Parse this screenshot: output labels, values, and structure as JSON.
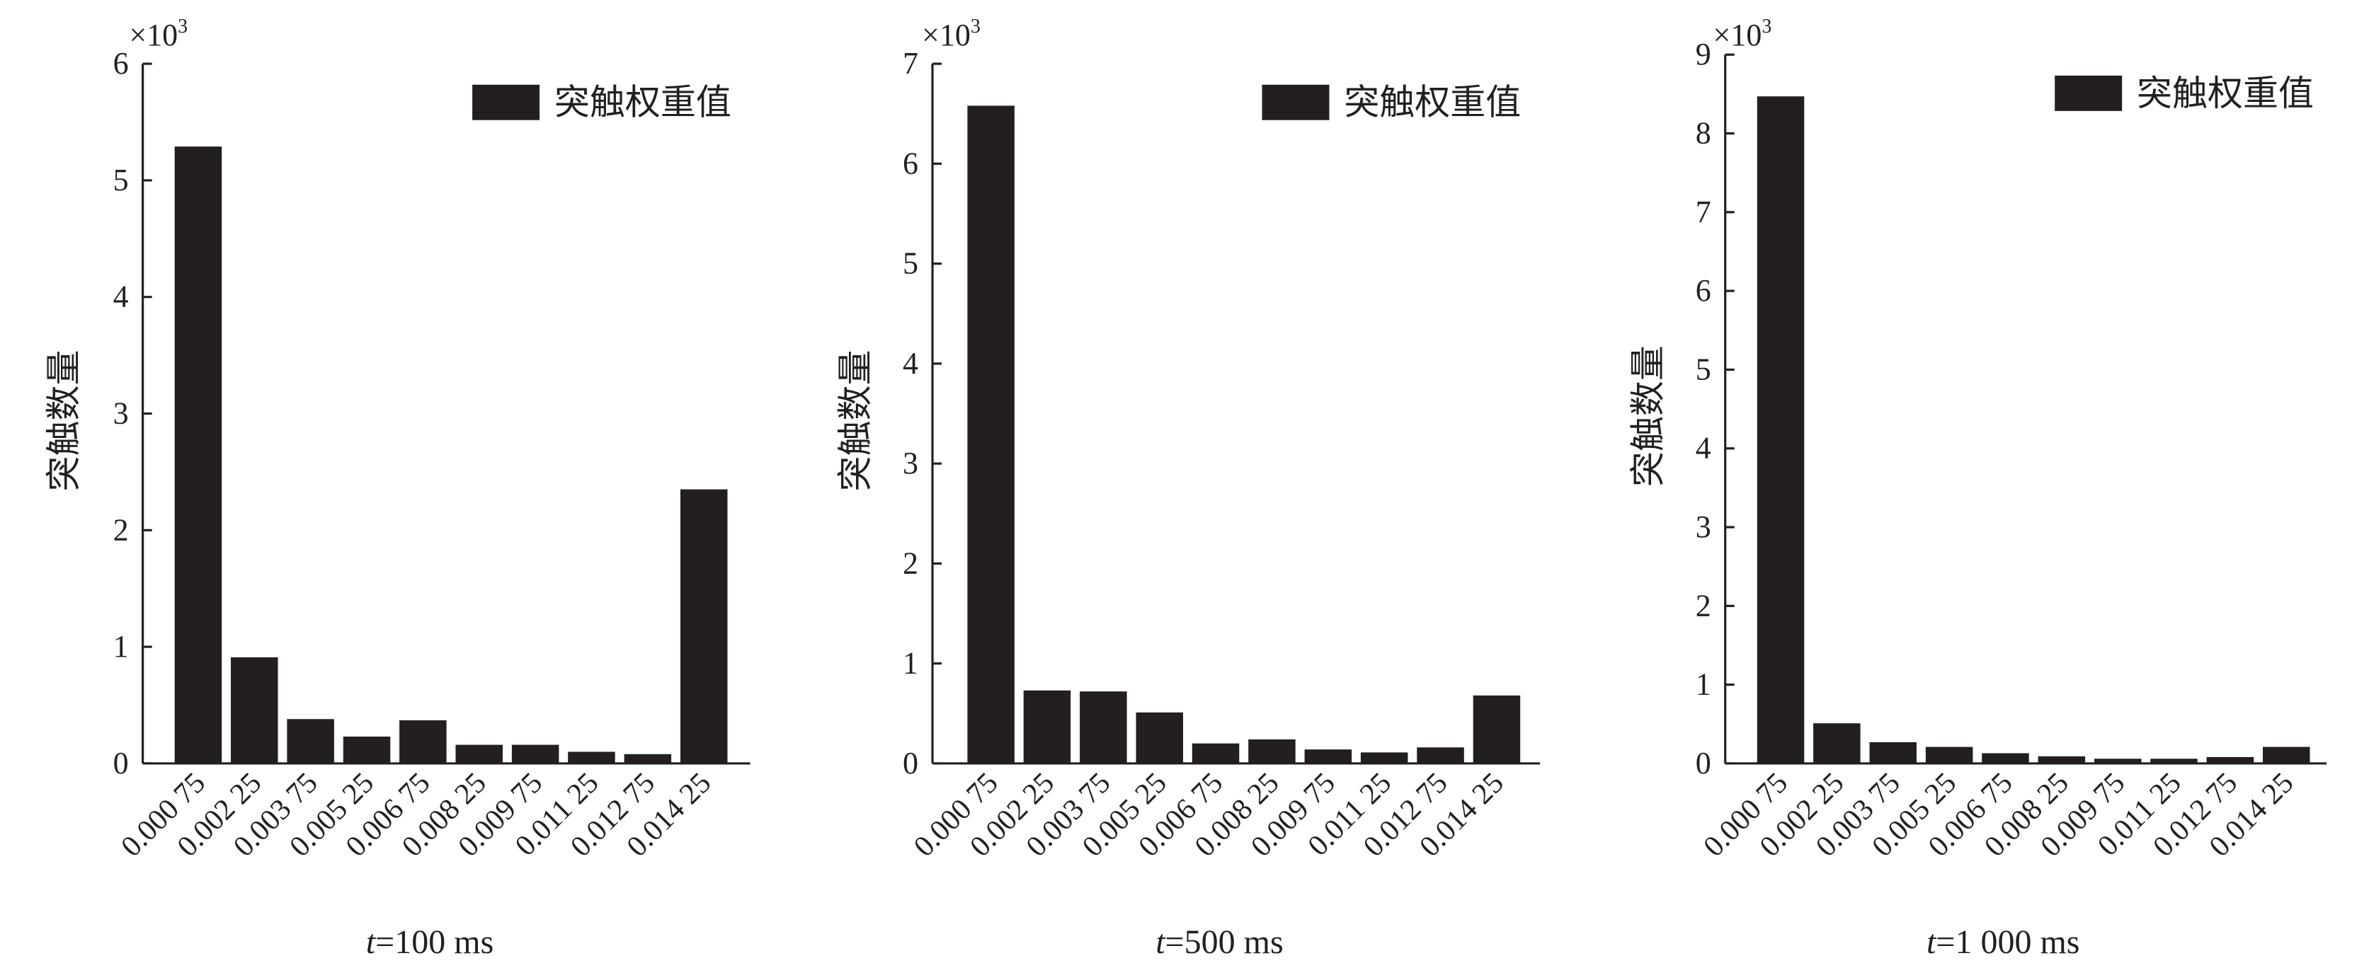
{
  "chart_data": [
    {
      "type": "bar",
      "title": "",
      "xlabel": "t=100 ms",
      "xlabel_italic_prefix": "t",
      "xlabel_rest": "=100 ms",
      "ylabel": "突触数量",
      "y_multiplier": "×10",
      "y_multiplier_exp": "3",
      "ylim": [
        0,
        6
      ],
      "yticks": [
        "0",
        "1",
        "2",
        "3",
        "4",
        "5",
        "6"
      ],
      "legend": "突触权重值",
      "legend_position": "top-right",
      "categories": [
        "0.000 75",
        "0.002 25",
        "0.003 75",
        "0.005 25",
        "0.006 75",
        "0.008 25",
        "0.009 75",
        "0.011 25",
        "0.012 75",
        "0.014 25"
      ],
      "values": [
        5.29,
        0.91,
        0.38,
        0.23,
        0.37,
        0.16,
        0.16,
        0.1,
        0.08,
        2.35
      ]
    },
    {
      "type": "bar",
      "title": "",
      "xlabel": "t=500 ms",
      "xlabel_italic_prefix": "t",
      "xlabel_rest": "=500 ms",
      "ylabel": "突触数量",
      "y_multiplier": "×10",
      "y_multiplier_exp": "3",
      "ylim": [
        0,
        7
      ],
      "yticks": [
        "0",
        "1",
        "2",
        "3",
        "4",
        "5",
        "6",
        "7"
      ],
      "legend": "突触权重值",
      "legend_position": "top-right",
      "categories": [
        "0.000 75",
        "0.002 25",
        "0.003 75",
        "0.005 25",
        "0.006 75",
        "0.008 25",
        "0.009 75",
        "0.011 25",
        "0.012 75",
        "0.014 25"
      ],
      "values": [
        6.58,
        0.73,
        0.72,
        0.51,
        0.2,
        0.24,
        0.14,
        0.11,
        0.16,
        0.68
      ]
    },
    {
      "type": "bar",
      "title": "",
      "xlabel": "t=1 000 ms",
      "xlabel_italic_prefix": "t",
      "xlabel_rest": "=1 000 ms",
      "ylabel": "突触数量",
      "y_multiplier": "×10",
      "y_multiplier_exp": "3",
      "ylim": [
        0,
        9
      ],
      "yticks": [
        "0",
        "1",
        "2",
        "3",
        "4",
        "5",
        "6",
        "7",
        "8",
        "9"
      ],
      "legend": "突触权重值",
      "legend_position": "top-right",
      "categories": [
        "0.000 75",
        "0.002 25",
        "0.003 75",
        "0.005 25",
        "0.006 75",
        "0.008 25",
        "0.009 75",
        "0.011 25",
        "0.012 75",
        "0.014 25"
      ],
      "values": [
        8.47,
        0.51,
        0.27,
        0.21,
        0.13,
        0.09,
        0.06,
        0.06,
        0.08,
        0.21
      ]
    }
  ],
  "colors": {
    "bar": "#231f20",
    "axis": "#231f20",
    "text": "#231f20"
  }
}
